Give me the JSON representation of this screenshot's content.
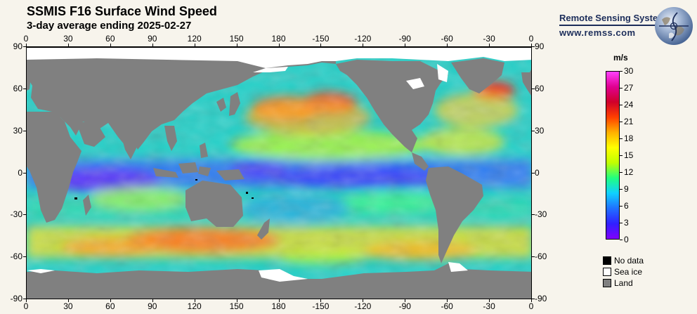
{
  "header": {
    "title": "SSMIS F16 Surface Wind Speed",
    "subtitle": "3-day average ending 2025-02-27"
  },
  "logo": {
    "name": "Remote Sensing Systems",
    "url": "www.remss.com",
    "globe_icon": "earth-globe-icon"
  },
  "map": {
    "projection": "equirectangular",
    "lon_range": [
      0,
      360
    ],
    "lat_range": [
      -90,
      90
    ],
    "x_ticks": [
      "0",
      "30",
      "60",
      "90",
      "120",
      "150",
      "180",
      "-150",
      "-120",
      "-90",
      "-60",
      "-30",
      "0"
    ],
    "y_ticks": [
      "90",
      "60",
      "30",
      "0",
      "-30",
      "-60",
      "-90"
    ],
    "colors": {
      "land": "#808080",
      "sea_ice": "#ffffff",
      "no_data": "#000000",
      "background": "#f7f4ec"
    }
  },
  "colorbar": {
    "unit": "m/s",
    "labels": [
      "30",
      "27",
      "24",
      "21",
      "18",
      "15",
      "12",
      "9",
      "6",
      "3",
      "0"
    ],
    "range": [
      0,
      30
    ],
    "stops": [
      "#8000ff",
      "#3020ff",
      "#2070ff",
      "#10d0ff",
      "#20ff80",
      "#c0ff00",
      "#ffff00",
      "#ffb000",
      "#ff4000",
      "#d0002a",
      "#e00090",
      "#ff40ff"
    ]
  },
  "legend": [
    {
      "label": "No data",
      "color": "#000000"
    },
    {
      "label": "Sea ice",
      "color": "#ffffff"
    },
    {
      "label": "Land",
      "color": "#808080"
    }
  ]
}
